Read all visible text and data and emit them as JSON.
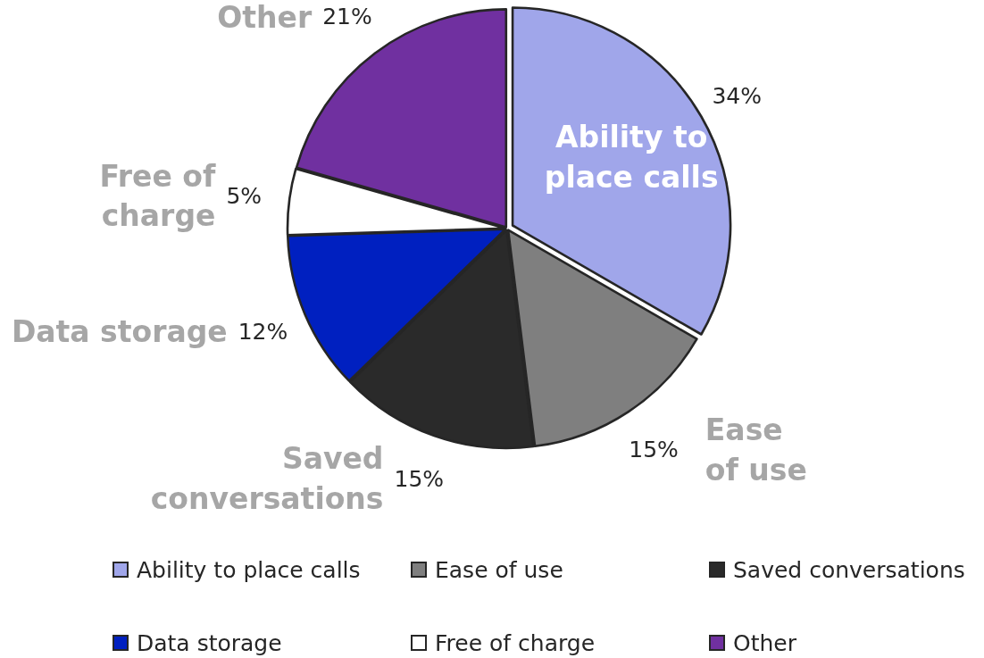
{
  "chart_data": {
    "type": "pie",
    "categories": [
      "Ability to place calls",
      "Ease of use",
      "Saved conversations",
      "Data storage",
      "Free of charge",
      "Other"
    ],
    "values": [
      34,
      15,
      15,
      12,
      5,
      21
    ],
    "value_labels": [
      "34%",
      "15%",
      "15%",
      "12%",
      "5%",
      "21%"
    ],
    "colors": [
      "#a0a6ea",
      "#7f7f7f",
      "#2a2a2a",
      "#0020c0",
      "#ffffff",
      "#7030a0"
    ],
    "legend": "bottom"
  }
}
